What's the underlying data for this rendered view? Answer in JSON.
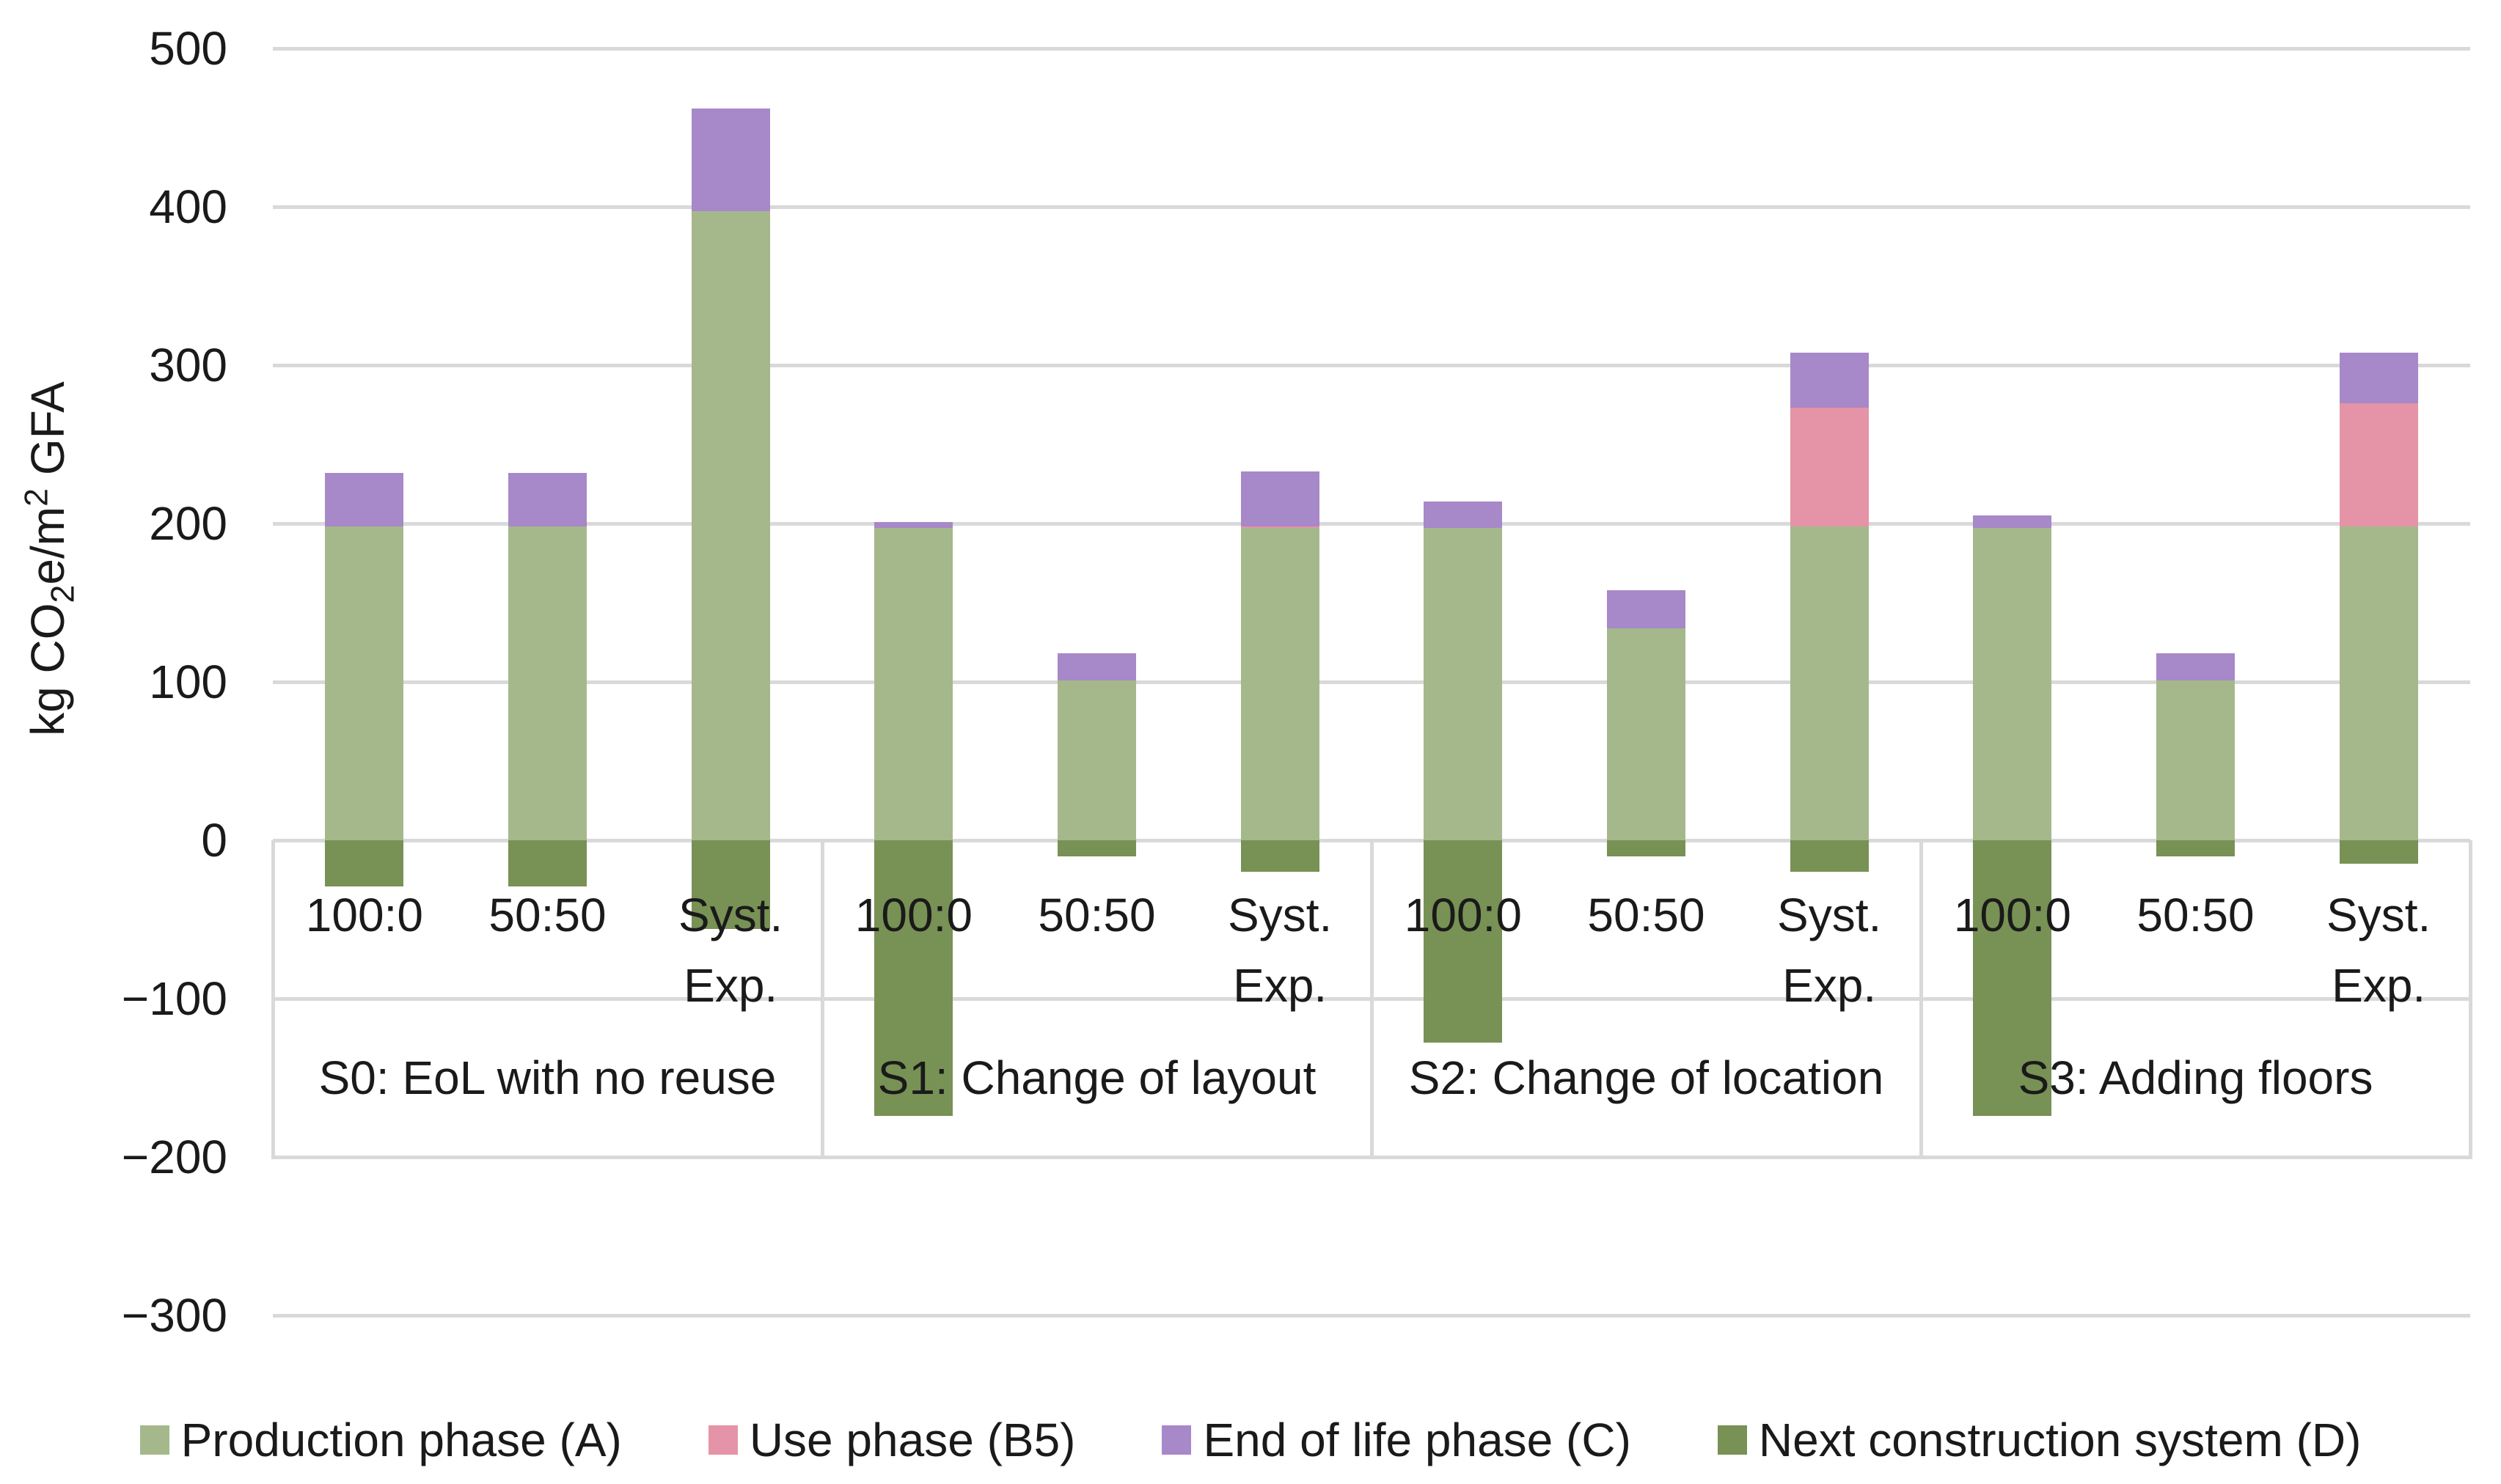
{
  "chart_data": {
    "type": "bar",
    "stacked": true,
    "title": "",
    "ylabel": "kg CO2e/m2 GFA",
    "ylabel_parts": {
      "p1": "kg CO",
      "sub": "2",
      "p2": "e/m",
      "sup": "2",
      "p3": "  GFA"
    },
    "ylim": [
      -300,
      500
    ],
    "ytick_step": 100,
    "yticks": [
      500,
      400,
      300,
      200,
      100,
      0,
      -100,
      -200,
      -300
    ],
    "ytick_labels": [
      "500",
      "400",
      "300",
      "200",
      "100",
      "0",
      "−100",
      "−200",
      "−300"
    ],
    "grid": true,
    "grid_color": "#d9d9d9",
    "text_color": "#1a1a1a",
    "legend_position": "bottom",
    "series_meta": [
      {
        "key": "production",
        "name": "Production phase (A)",
        "color": "#a5b88c"
      },
      {
        "key": "use",
        "name": "Use phase (B5)",
        "color": "#e494a6"
      },
      {
        "key": "eol",
        "name": "End of life phase (C)",
        "color": "#a788c8"
      },
      {
        "key": "next",
        "name": "Next construction system (D)",
        "color": "#789155"
      }
    ],
    "groups": [
      {
        "label": "S0: EoL with no reuse",
        "bars": [
          {
            "label": "100:0",
            "label_lines": [
              "100:0"
            ],
            "production": 198,
            "use": 0,
            "eol": 34,
            "next": -29
          },
          {
            "label": "50:50",
            "label_lines": [
              "50:50"
            ],
            "production": 198,
            "use": 0,
            "eol": 34,
            "next": -29
          },
          {
            "label": "Syst. Exp.",
            "label_lines": [
              "Syst.",
              "Exp."
            ],
            "production": 397,
            "use": 0,
            "eol": 65,
            "next": -56
          }
        ]
      },
      {
        "label": "S1: Change of layout",
        "bars": [
          {
            "label": "100:0",
            "label_lines": [
              "100:0"
            ],
            "production": 197,
            "use": 0,
            "eol": 4,
            "next": -174
          },
          {
            "label": "50:50",
            "label_lines": [
              "50:50"
            ],
            "production": 101,
            "use": 0,
            "eol": 17,
            "next": -10
          },
          {
            "label": "Syst. Exp.",
            "label_lines": [
              "Syst.",
              "Exp."
            ],
            "production": 197,
            "use": 1,
            "eol": 35,
            "next": -20
          }
        ]
      },
      {
        "label": "S2: Change of location",
        "bars": [
          {
            "label": "100:0",
            "label_lines": [
              "100:0"
            ],
            "production": 197,
            "use": 0,
            "eol": 17,
            "next": -128
          },
          {
            "label": "50:50",
            "label_lines": [
              "50:50"
            ],
            "production": 134,
            "use": 0,
            "eol": 24,
            "next": -10
          },
          {
            "label": "Syst. Exp.",
            "label_lines": [
              "Syst.",
              "Exp."
            ],
            "production": 198,
            "use": 75,
            "eol": 35,
            "next": -20
          }
        ]
      },
      {
        "label": "S3: Adding floors",
        "bars": [
          {
            "label": "100:0",
            "label_lines": [
              "100:0"
            ],
            "production": 197,
            "use": 0,
            "eol": 8,
            "next": -174
          },
          {
            "label": "50:50",
            "label_lines": [
              "50:50"
            ],
            "production": 101,
            "use": 0,
            "eol": 17,
            "next": -10
          },
          {
            "label": "Syst. Exp.",
            "label_lines": [
              "Syst.",
              "Exp."
            ],
            "production": 198,
            "use": 78,
            "eol": 32,
            "next": -15
          }
        ]
      }
    ]
  }
}
